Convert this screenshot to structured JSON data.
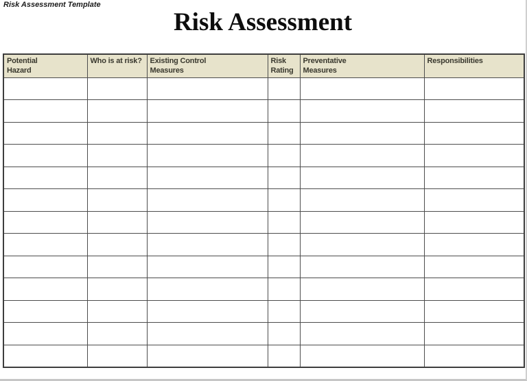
{
  "page": {
    "doc_label": "Risk Assessment Template",
    "title": "Risk Assessment"
  },
  "table": {
    "row_count": 13,
    "columns": [
      {
        "id": "potential-hazard",
        "lines": [
          "Potential",
          "Hazard"
        ]
      },
      {
        "id": "who-is-at-risk",
        "lines": [
          "Who is at risk?"
        ]
      },
      {
        "id": "existing-control-measures",
        "lines": [
          "Existing Control",
          "Measures"
        ]
      },
      {
        "id": "risk-rating",
        "lines": [
          "Risk",
          "Rating"
        ]
      },
      {
        "id": "preventative-measures",
        "lines": [
          "Preventative",
          "Measures"
        ]
      },
      {
        "id": "responsibilities",
        "lines": [
          "Responsibilities"
        ]
      }
    ]
  },
  "colors": {
    "header_bg": "#e7e3cb",
    "border": "#4c4c4c",
    "outer_border": "#3d3d3d",
    "header_text": "#39382e"
  }
}
